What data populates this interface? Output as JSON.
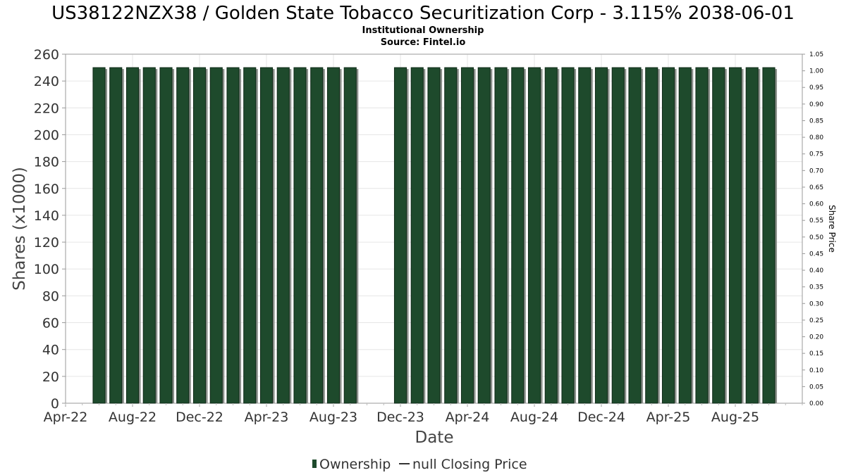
{
  "chart_data": {
    "type": "bar",
    "title": "US38122NZX38 / Golden State Tobacco Securitization Corp - 3.115% 2038-06-01",
    "subtitle": "Institutional Ownership",
    "source": "Source: Fintel.io",
    "xlabel": "Date",
    "ylabel": "Shares (x1000)",
    "y2label": "Share Price",
    "ylim": [
      0,
      260
    ],
    "y2lim": [
      0,
      1.05
    ],
    "yticks": [
      "0",
      "20",
      "40",
      "60",
      "80",
      "100",
      "120",
      "140",
      "160",
      "180",
      "200",
      "220",
      "240",
      "260"
    ],
    "y2ticks": [
      "0.00",
      "0.05",
      "0.10",
      "0.15",
      "0.20",
      "0.25",
      "0.30",
      "0.35",
      "0.40",
      "0.45",
      "0.50",
      "0.55",
      "0.60",
      "0.65",
      "0.70",
      "0.75",
      "0.80",
      "0.85",
      "0.90",
      "0.95",
      "1.00",
      "1.05"
    ],
    "xtick_labels": [
      "Apr-22",
      "Aug-22",
      "Dec-22",
      "Apr-23",
      "Aug-23",
      "Dec-23",
      "Apr-24",
      "Aug-24",
      "Dec-24",
      "Apr-25",
      "Aug-25"
    ],
    "grid": true,
    "legend_position": "bottom",
    "colors": {
      "ownership": "#1e4a2c",
      "shadow": "#8a8f8a"
    },
    "series": [
      {
        "name": "Ownership",
        "x": [
          "2022-06",
          "2022-07",
          "2022-08",
          "2022-09",
          "2022-10",
          "2022-11",
          "2022-12",
          "2023-01",
          "2023-02",
          "2023-03",
          "2023-04",
          "2023-05",
          "2023-06",
          "2023-07",
          "2023-08",
          "2023-09",
          "2023-12",
          "2024-01",
          "2024-02",
          "2024-03",
          "2024-04",
          "2024-05",
          "2024-06",
          "2024-07",
          "2024-08",
          "2024-09",
          "2024-10",
          "2024-11",
          "2024-12",
          "2025-01",
          "2025-02",
          "2025-03",
          "2025-04",
          "2025-05",
          "2025-06",
          "2025-07",
          "2025-08",
          "2025-09",
          "2025-10"
        ],
        "values": [
          250,
          250,
          250,
          250,
          250,
          250,
          250,
          250,
          250,
          250,
          250,
          250,
          250,
          250,
          250,
          250,
          250,
          250,
          250,
          250,
          250,
          250,
          250,
          250,
          250,
          250,
          250,
          250,
          250,
          250,
          250,
          250,
          250,
          250,
          250,
          250,
          250,
          250,
          250
        ]
      }
    ],
    "legend": [
      "Ownership",
      "null Closing Price"
    ]
  }
}
